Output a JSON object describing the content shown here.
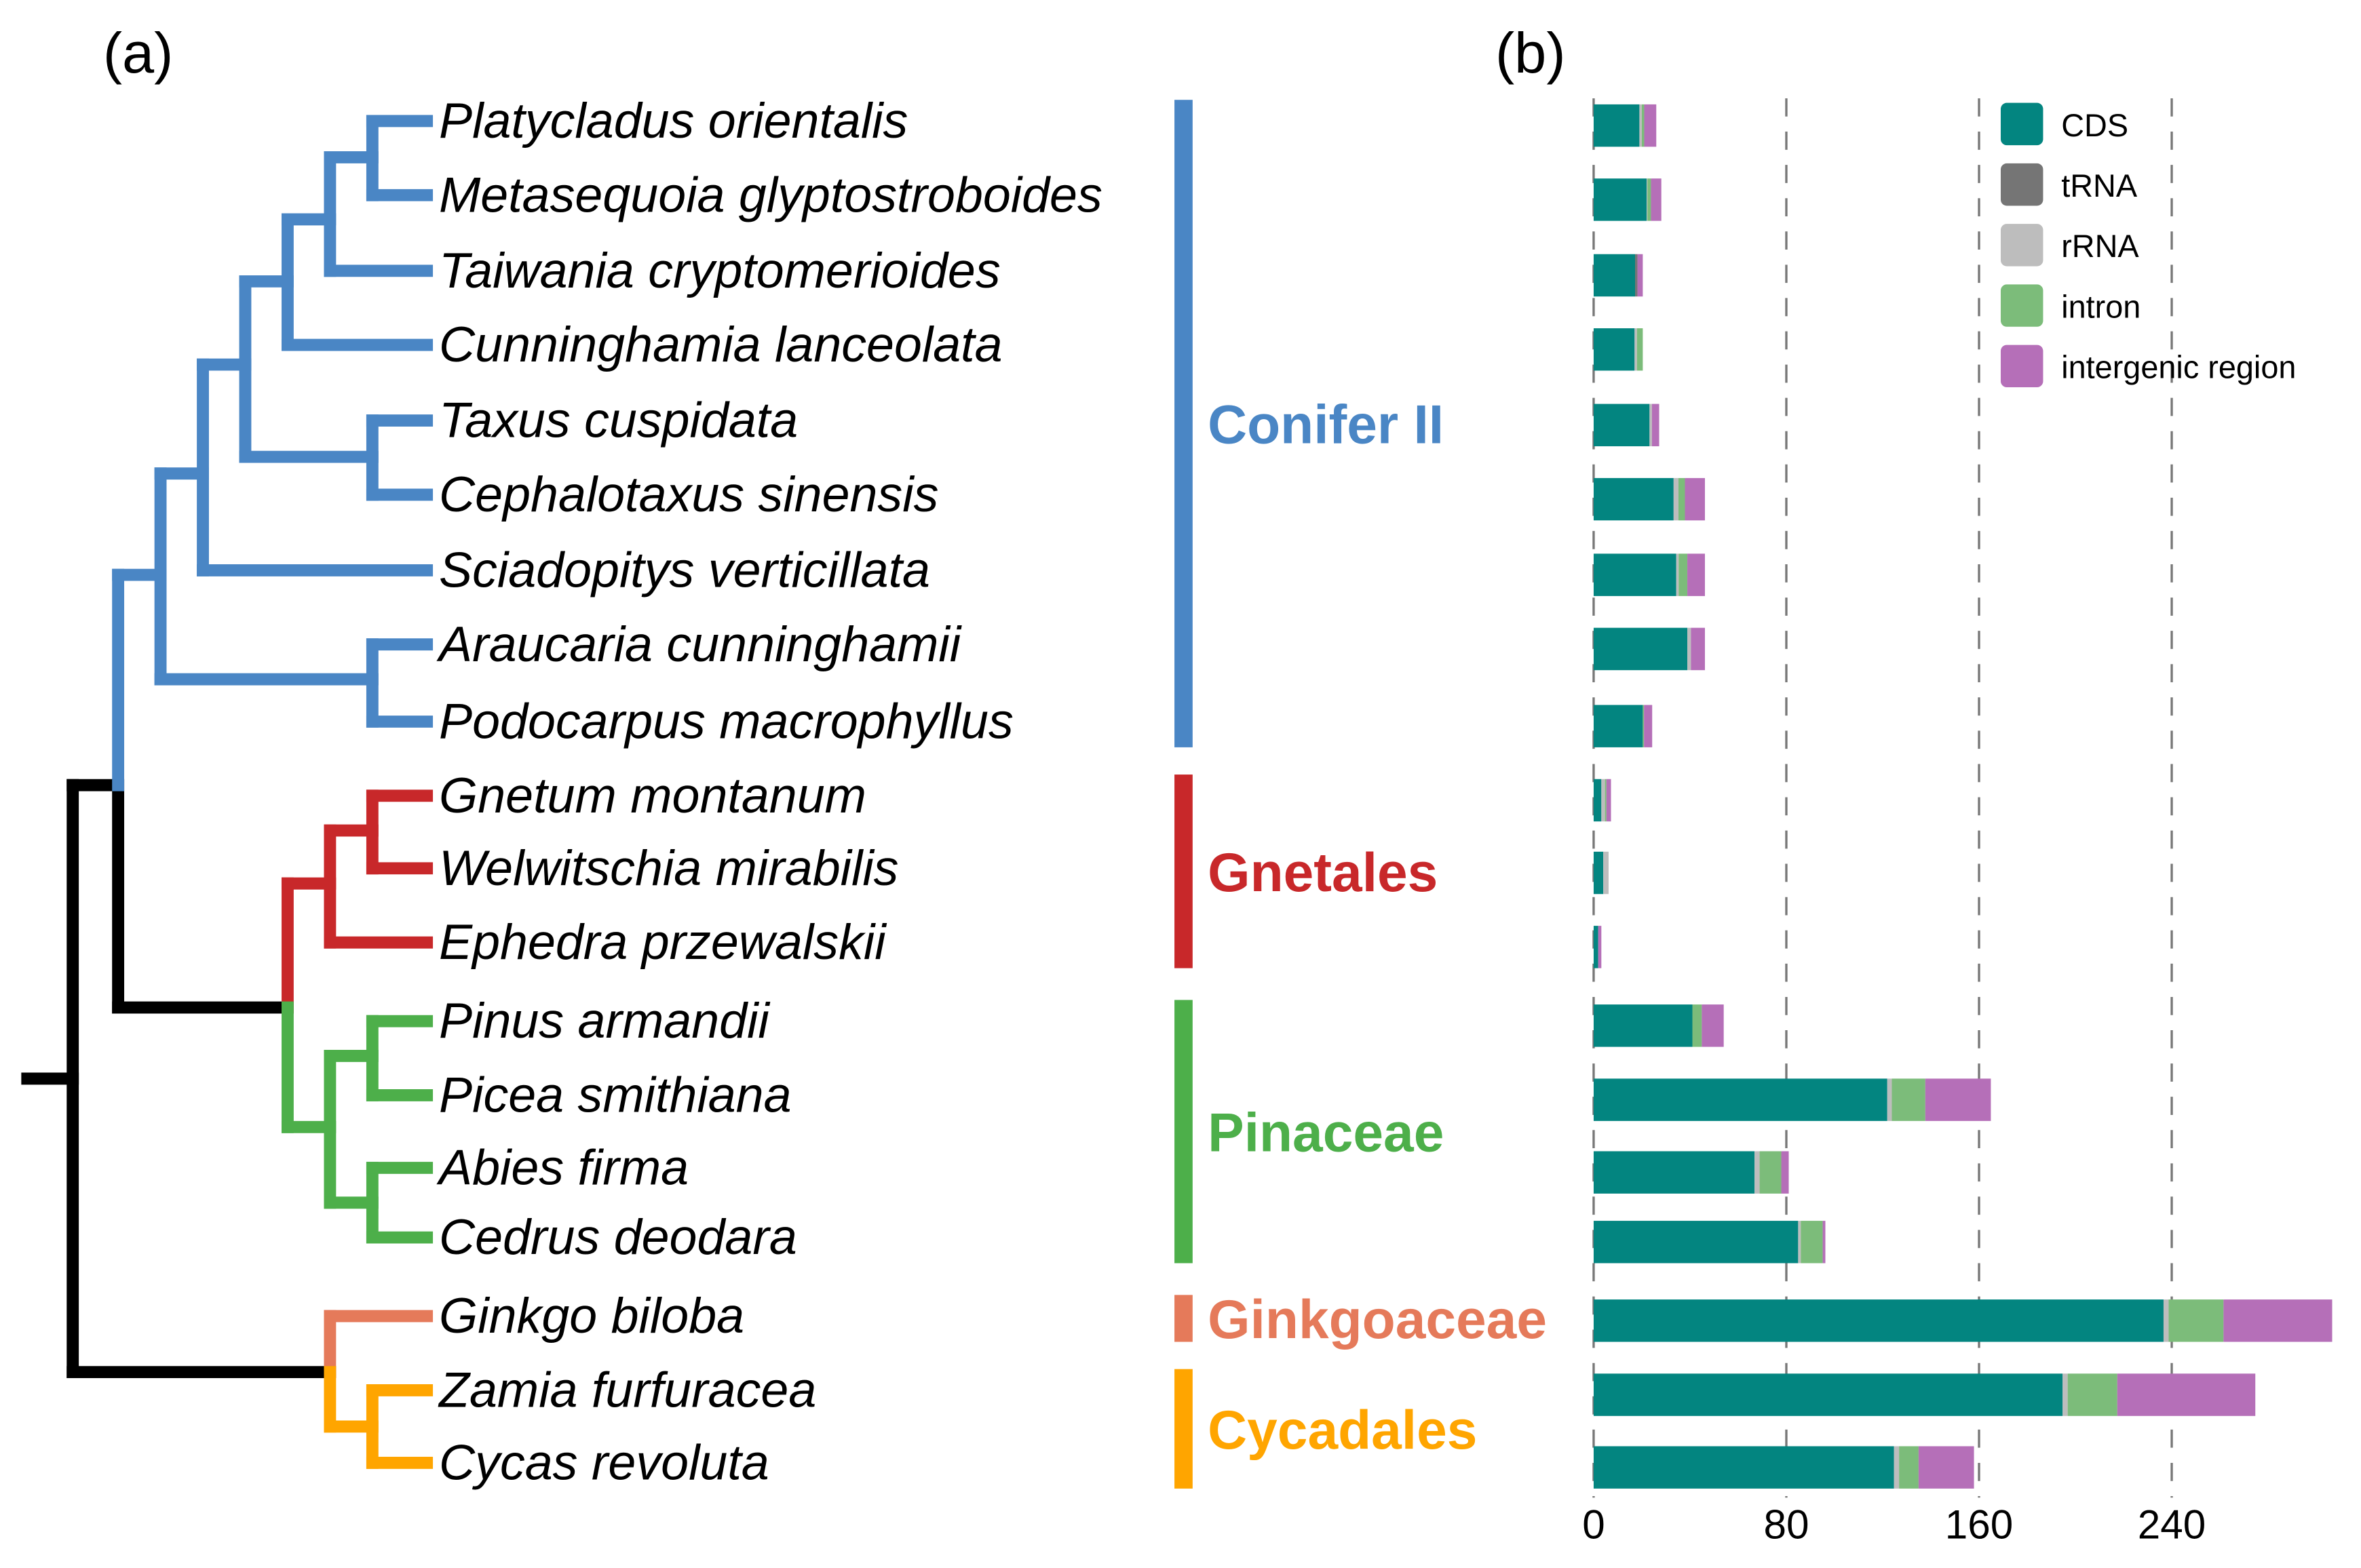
{
  "panels": {
    "a": "(a)",
    "b": "(b)"
  },
  "colors": {
    "conifer": "#4a86c5",
    "gnetales": "#c8282a",
    "pinaceae": "#4daf4a",
    "ginkgo": "#e57a5a",
    "cycad": "#ffa500",
    "backbone": "#000000",
    "CDS": "#038580",
    "tRNA": "#757575",
    "rRNA": "#bdbdbd",
    "intron": "#7cbc7a",
    "intergenic": "#b56fb8"
  },
  "species": [
    "Platycladus orientalis",
    "Metasequoia glyptostroboides",
    "Taiwania cryptomerioides",
    "Cunninghamia lanceolata",
    "Taxus cuspidata",
    "Cephalotaxus sinensis",
    "Sciadopitys verticillata",
    "Araucaria cunninghamii",
    "Podocarpus macrophyllus",
    "Gnetum montanum",
    "Welwitschia mirabilis",
    "Ephedra przewalskii",
    "Pinus armandii",
    "Picea smithiana",
    "Abies firma",
    "Cedrus deodara",
    "Ginkgo biloba",
    "Zamia furfuracea",
    "Cycas revoluta"
  ],
  "clades": [
    {
      "name": "Conifer II",
      "color_key": "conifer",
      "first": 0,
      "last": 8
    },
    {
      "name": "Gnetales",
      "color_key": "gnetales",
      "first": 9,
      "last": 11
    },
    {
      "name": "Pinaceae",
      "color_key": "pinaceae",
      "first": 12,
      "last": 15
    },
    {
      "name": "Ginkgoaceae",
      "color_key": "ginkgo",
      "first": 16,
      "last": 16
    },
    {
      "name": "Cycadales",
      "color_key": "cycad",
      "first": 17,
      "last": 18
    }
  ],
  "chart_data": {
    "type": "bar",
    "orientation": "horizontal-stacked",
    "categories": [
      "Platycladus orientalis",
      "Metasequoia glyptostroboides",
      "Taiwania cryptomerioides",
      "Cunninghamia lanceolata",
      "Taxus cuspidata",
      "Cephalotaxus sinensis",
      "Sciadopitys verticillata",
      "Araucaria cunninghamii",
      "Podocarpus macrophyllus",
      "Gnetum montanum",
      "Welwitschia mirabilis",
      "Ephedra przewalskii",
      "Pinus armandii",
      "Picea smithiana",
      "Abies firma",
      "Cedrus deodara",
      "Ginkgo biloba",
      "Zamia furfuracea",
      "Cycas revoluta"
    ],
    "series": [
      {
        "name": "CDS",
        "key": "CDS",
        "values": [
          19,
          22,
          17.2,
          17,
          23.2,
          33.2,
          34.3,
          38.9,
          20.4,
          3.2,
          4,
          1.9,
          41,
          121.9,
          66.8,
          84.9,
          236.6,
          194.7,
          124.7
        ]
      },
      {
        "name": "tRNA",
        "key": "tRNA",
        "values": [
          0,
          0,
          1,
          0,
          0,
          0,
          0,
          0,
          0,
          0,
          0,
          0,
          0,
          0,
          0,
          0,
          0,
          0,
          0
        ]
      },
      {
        "name": "rRNA",
        "key": "rRNA",
        "values": [
          1,
          0.3,
          0,
          1,
          1,
          2,
          1,
          1.5,
          0,
          1.5,
          2.2,
          0,
          0,
          1.9,
          2.1,
          1.1,
          2.1,
          2.1,
          2.1
        ]
      },
      {
        "name": "intron",
        "key": "intron",
        "values": [
          1,
          1.5,
          0,
          2.4,
          0,
          2.7,
          3.6,
          0,
          0.5,
          0.6,
          0,
          0,
          3.9,
          13.9,
          9,
          9.1,
          22.8,
          20.6,
          8.1
        ]
      },
      {
        "name": "intergenic region",
        "key": "intergenic",
        "values": [
          5,
          4.3,
          2.2,
          0,
          3,
          8.3,
          7.3,
          5.8,
          3.4,
          1.9,
          0,
          1.3,
          9.1,
          27.2,
          3.1,
          1.1,
          45.1,
          57.3,
          23
        ]
      }
    ],
    "xlim": [
      0,
      310
    ],
    "xticks": [
      0,
      80,
      160,
      240
    ],
    "xtick_labels": [
      "0",
      "80",
      "160",
      "240"
    ],
    "grid": "vertical dashed",
    "legend": "top-right",
    "title": "",
    "xlabel": "",
    "ylabel": ""
  }
}
